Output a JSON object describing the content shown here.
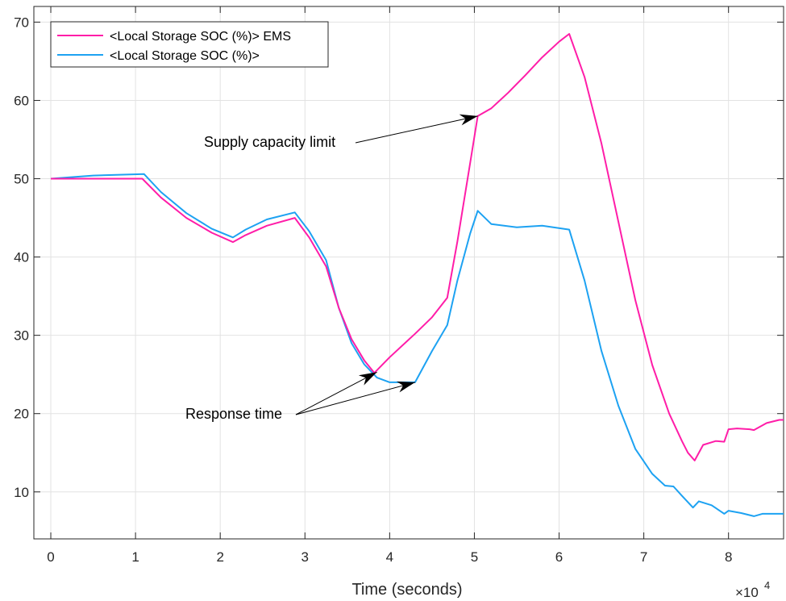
{
  "chart_data": {
    "type": "line",
    "xlabel": "Time (seconds)",
    "ylabel": "",
    "x_exponent": {
      "base": "×10",
      "power": "4"
    },
    "xlim": [
      -0.2,
      8.65
    ],
    "ylim": [
      4,
      72
    ],
    "x_ticks": [
      0,
      1,
      2,
      3,
      4,
      5,
      6,
      7,
      8
    ],
    "x_tick_labels": [
      "0",
      "1",
      "2",
      "3",
      "4",
      "5",
      "6",
      "7",
      "8"
    ],
    "y_ticks": [
      10,
      20,
      30,
      40,
      50,
      60,
      70
    ],
    "y_tick_labels": [
      "10",
      "20",
      "30",
      "40",
      "50",
      "60",
      "70"
    ],
    "grid": true,
    "legend_position": "top-left",
    "series": [
      {
        "name": "<Local Storage SOC (%)> EMS",
        "color": "#FF1DA8",
        "points": [
          [
            0,
            50
          ],
          [
            0.5,
            50
          ],
          [
            1.08,
            50
          ],
          [
            1.3,
            47.6
          ],
          [
            1.6,
            45
          ],
          [
            1.9,
            43.1
          ],
          [
            2.15,
            41.9
          ],
          [
            2.3,
            42.8
          ],
          [
            2.55,
            44
          ],
          [
            2.88,
            45
          ],
          [
            3.05,
            42.5
          ],
          [
            3.25,
            38.8
          ],
          [
            3.4,
            33.5
          ],
          [
            3.55,
            29.5
          ],
          [
            3.7,
            26.8
          ],
          [
            3.82,
            25.2
          ],
          [
            4.0,
            27.2
          ],
          [
            4.3,
            30.2
          ],
          [
            4.5,
            32.3
          ],
          [
            4.68,
            34.8
          ],
          [
            4.8,
            42
          ],
          [
            4.95,
            52
          ],
          [
            5.04,
            58
          ],
          [
            5.2,
            59
          ],
          [
            5.4,
            61
          ],
          [
            5.6,
            63.2
          ],
          [
            5.8,
            65.5
          ],
          [
            6.0,
            67.5
          ],
          [
            6.12,
            68.5
          ],
          [
            6.3,
            63
          ],
          [
            6.5,
            54.5
          ],
          [
            6.7,
            44.5
          ],
          [
            6.9,
            34.5
          ],
          [
            7.1,
            26.2
          ],
          [
            7.3,
            20
          ],
          [
            7.45,
            16.5
          ],
          [
            7.52,
            15
          ],
          [
            7.6,
            14
          ],
          [
            7.7,
            16
          ],
          [
            7.85,
            16.5
          ],
          [
            7.95,
            16.4
          ],
          [
            8.0,
            18
          ],
          [
            8.1,
            18.1
          ],
          [
            8.25,
            18
          ],
          [
            8.3,
            17.9
          ],
          [
            8.45,
            18.8
          ],
          [
            8.6,
            19.2
          ],
          [
            8.65,
            19.2
          ]
        ]
      },
      {
        "name": "<Local Storage SOC (%)>",
        "color": "#1DA2F2",
        "points": [
          [
            0,
            50
          ],
          [
            0.5,
            50.4
          ],
          [
            1.1,
            50.6
          ],
          [
            1.3,
            48.3
          ],
          [
            1.6,
            45.6
          ],
          [
            1.9,
            43.6
          ],
          [
            2.15,
            42.5
          ],
          [
            2.3,
            43.5
          ],
          [
            2.55,
            44.8
          ],
          [
            2.88,
            45.7
          ],
          [
            3.05,
            43.3
          ],
          [
            3.25,
            39.6
          ],
          [
            3.4,
            33.5
          ],
          [
            3.55,
            29
          ],
          [
            3.7,
            26.3
          ],
          [
            3.85,
            24.6
          ],
          [
            4.0,
            24
          ],
          [
            4.3,
            24
          ],
          [
            4.5,
            28
          ],
          [
            4.68,
            31.3
          ],
          [
            4.8,
            37
          ],
          [
            4.95,
            43
          ],
          [
            5.04,
            45.9
          ],
          [
            5.2,
            44.2
          ],
          [
            5.5,
            43.8
          ],
          [
            5.8,
            44
          ],
          [
            6.12,
            43.5
          ],
          [
            6.3,
            37
          ],
          [
            6.5,
            28
          ],
          [
            6.7,
            21
          ],
          [
            6.9,
            15.5
          ],
          [
            7.1,
            12.3
          ],
          [
            7.25,
            10.8
          ],
          [
            7.35,
            10.7
          ],
          [
            7.45,
            9.5
          ],
          [
            7.58,
            8
          ],
          [
            7.65,
            8.8
          ],
          [
            7.8,
            8.3
          ],
          [
            7.95,
            7.2
          ],
          [
            8.0,
            7.6
          ],
          [
            8.15,
            7.3
          ],
          [
            8.3,
            6.9
          ],
          [
            8.4,
            7.2
          ],
          [
            8.65,
            7.2
          ]
        ]
      }
    ],
    "annotations": [
      {
        "text": "Supply capacity limit",
        "arrows_to": [
          [
            5.04,
            58
          ]
        ]
      },
      {
        "text": "Response time",
        "arrows_to": [
          [
            3.85,
            25.3
          ],
          [
            4.3,
            24
          ]
        ]
      }
    ]
  }
}
